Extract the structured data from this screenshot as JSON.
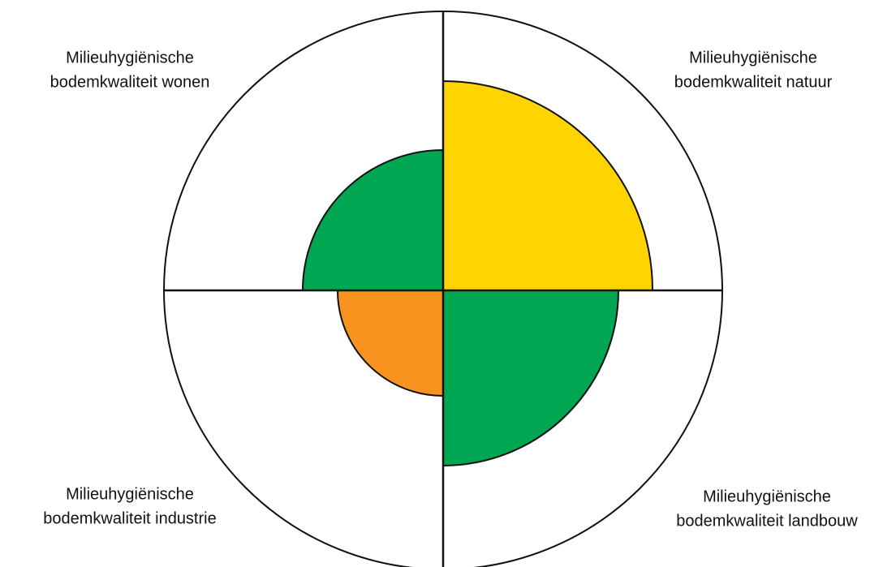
{
  "quadrants": [
    {
      "lines": [
        "Milieuhygiënische",
        "bodemkwaliteit wonen"
      ]
    },
    {
      "lines": [
        "Milieuhygiënische",
        "bodemkwaliteit natuur"
      ]
    },
    {
      "lines": [
        "Milieuhygiënische",
        "bodemkwaliteit industrie"
      ]
    },
    {
      "lines": [
        "Milieuhygiënische",
        "bodemkwaliteit landbouw"
      ]
    }
  ]
}
